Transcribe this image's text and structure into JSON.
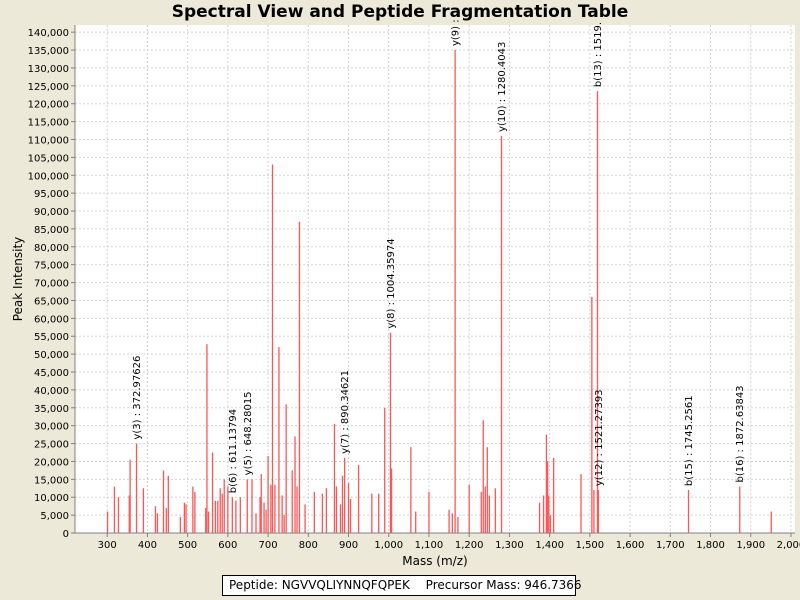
{
  "chart_data": {
    "type": "bar",
    "title": "Spectral View and Peptide Fragmentation Table",
    "xlabel": "Mass (m/z)",
    "ylabel": "Peak Intensity",
    "xlim": [
      220,
      2010
    ],
    "ylim": [
      0,
      142000
    ],
    "x_ticks": [
      300,
      400,
      500,
      600,
      700,
      800,
      900,
      1000,
      1100,
      1200,
      1300,
      1400,
      1500,
      1600,
      1700,
      1800,
      1900,
      2000
    ],
    "x_tick_labels": [
      "300",
      "400",
      "500",
      "600",
      "700",
      "800",
      "900",
      "1,000",
      "1,100",
      "1,200",
      "1,300",
      "1,400",
      "1,500",
      "1,600",
      "1,700",
      "1,800",
      "1,900",
      "2,000"
    ],
    "y_ticks": [
      0,
      5000,
      10000,
      15000,
      20000,
      25000,
      30000,
      35000,
      40000,
      45000,
      50000,
      55000,
      60000,
      65000,
      70000,
      75000,
      80000,
      85000,
      90000,
      95000,
      100000,
      105000,
      110000,
      115000,
      120000,
      125000,
      130000,
      135000,
      140000
    ],
    "y_tick_labels": [
      "0",
      "5,000",
      "10,000",
      "15,000",
      "20,000",
      "25,000",
      "30,000",
      "35,000",
      "40,000",
      "45,000",
      "50,000",
      "55,000",
      "60,000",
      "65,000",
      "70,000",
      "75,000",
      "80,000",
      "85,000",
      "90,000",
      "95,000",
      "100,000",
      "105,000",
      "110,000",
      "115,000",
      "120,000",
      "125,000",
      "130,000",
      "135,000",
      "140,000"
    ],
    "peaks": [
      [
        301,
        6000
      ],
      [
        318,
        13000
      ],
      [
        328,
        10000
      ],
      [
        355,
        10500
      ],
      [
        357,
        20500
      ],
      [
        372.97,
        25000
      ],
      [
        390,
        12500
      ],
      [
        420,
        7500
      ],
      [
        425,
        5500
      ],
      [
        440,
        17500
      ],
      [
        447,
        7000
      ],
      [
        452,
        16000
      ],
      [
        482,
        4500
      ],
      [
        492,
        8500
      ],
      [
        496,
        8000
      ],
      [
        513,
        13000
      ],
      [
        518,
        11500
      ],
      [
        545,
        7000
      ],
      [
        548,
        52800
      ],
      [
        552,
        6000
      ],
      [
        562,
        22500
      ],
      [
        569,
        9000
      ],
      [
        575,
        9000
      ],
      [
        581,
        12500
      ],
      [
        586,
        11000
      ],
      [
        591,
        15000
      ],
      [
        600,
        13000
      ],
      [
        611.14,
        10000
      ],
      [
        620,
        9000
      ],
      [
        631,
        10000
      ],
      [
        648.28,
        15000
      ],
      [
        660,
        15000
      ],
      [
        670,
        5500
      ],
      [
        680,
        10000
      ],
      [
        683,
        16500
      ],
      [
        690,
        8500
      ],
      [
        695,
        6500
      ],
      [
        700,
        21500
      ],
      [
        707,
        13500
      ],
      [
        711,
        103000
      ],
      [
        717,
        13500
      ],
      [
        727,
        52000
      ],
      [
        735,
        10500
      ],
      [
        740,
        5000
      ],
      [
        745,
        36000
      ],
      [
        760,
        17500
      ],
      [
        767,
        27000
      ],
      [
        772,
        13000
      ],
      [
        778,
        87000
      ],
      [
        792,
        8000
      ],
      [
        815,
        11500
      ],
      [
        835,
        11000
      ],
      [
        845,
        12500
      ],
      [
        865,
        30500
      ],
      [
        870,
        13000
      ],
      [
        880,
        8000
      ],
      [
        885,
        16000
      ],
      [
        890.35,
        21000
      ],
      [
        900,
        14000
      ],
      [
        905,
        9500
      ],
      [
        925,
        19000
      ],
      [
        958,
        11000
      ],
      [
        975,
        11000
      ],
      [
        990,
        35000
      ],
      [
        1004.36,
        56000
      ],
      [
        1007,
        18000
      ],
      [
        1055,
        24000
      ],
      [
        1067,
        6000
      ],
      [
        1100,
        11500
      ],
      [
        1150,
        6500
      ],
      [
        1158,
        5500
      ],
      [
        1165,
        135000
      ],
      [
        1172,
        4500
      ],
      [
        1200,
        13500
      ],
      [
        1230,
        11500
      ],
      [
        1235,
        31500
      ],
      [
        1240,
        13000
      ],
      [
        1245,
        24000
      ],
      [
        1250,
        10500
      ],
      [
        1265,
        12500
      ],
      [
        1280.4,
        111000
      ],
      [
        1375,
        8500
      ],
      [
        1385,
        10500
      ],
      [
        1392,
        27500
      ],
      [
        1395,
        20000
      ],
      [
        1398,
        10500
      ],
      [
        1402,
        5000
      ],
      [
        1410,
        21000
      ],
      [
        1478,
        16500
      ],
      [
        1505,
        66000
      ],
      [
        1510,
        12000
      ],
      [
        1519,
        123500
      ],
      [
        1521.27,
        12000
      ],
      [
        1745.26,
        12000
      ],
      [
        1872.64,
        13000
      ],
      [
        1951,
        6000
      ]
    ],
    "annotations": [
      {
        "x": 372.97,
        "text": "y(3) : 372.97626"
      },
      {
        "x": 611.14,
        "text": "b(6) : 611.13794"
      },
      {
        "x": 648.28,
        "text": "y(5) : 648.28015"
      },
      {
        "x": 890.35,
        "text": "y(7) : 890.34621"
      },
      {
        "x": 1004.36,
        "text": "y(8) : 1004.35974"
      },
      {
        "x": 1165,
        "text": "y(9) :"
      },
      {
        "x": 1280.4,
        "text": "y(10) : 1280.4043"
      },
      {
        "x": 1519,
        "text": "b(13) : 1519."
      },
      {
        "x": 1521.27,
        "text": "y(12) : 1521.27393"
      },
      {
        "x": 1745.26,
        "text": "b(15) : 1745.2561"
      },
      {
        "x": 1872.64,
        "text": "b(16) : 1872.63843"
      }
    ],
    "colors": {
      "peak": "#ff5555",
      "grid": "#d3d3d3",
      "plot_bg": "#ffffff",
      "page_bg": "#ece9d8"
    }
  },
  "footer": {
    "peptide": "Peptide: NGVVQLIYNNQFQPEK",
    "precursor": "Precursor Mass: 946.7366"
  }
}
